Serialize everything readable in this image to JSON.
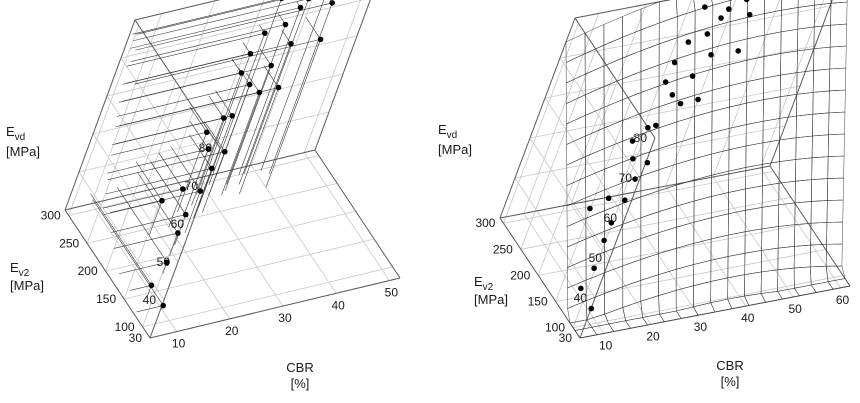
{
  "chart_data": [
    {
      "type": "scatter3d",
      "axes": {
        "x": {
          "label": "CBR",
          "unit": "[%]",
          "ticks": [
            "10",
            "20",
            "30",
            "40",
            "50"
          ],
          "range": [
            5,
            52
          ]
        },
        "y": {
          "label": "E",
          "label_sub": "v2",
          "unit": "[MPa]",
          "ticks": [
            "100",
            "150",
            "200",
            "250",
            "300"
          ],
          "range": [
            80,
            310
          ]
        },
        "z": {
          "label": "E",
          "label_sub": "vd",
          "unit": "[MPa]",
          "ticks": [
            "30",
            "40",
            "50",
            "60",
            "70",
            "80"
          ],
          "range": [
            30,
            80
          ]
        }
      },
      "grid": true,
      "points": [
        {
          "x": 10,
          "y": 120,
          "z": 31
        },
        {
          "x": 9,
          "y": 145,
          "z": 33
        },
        {
          "x": 14,
          "y": 175,
          "z": 33
        },
        {
          "x": 17,
          "y": 200,
          "z": 36
        },
        {
          "x": 19,
          "y": 215,
          "z": 38
        },
        {
          "x": 16,
          "y": 240,
          "z": 39
        },
        {
          "x": 20,
          "y": 245,
          "z": 40
        },
        {
          "x": 22,
          "y": 230,
          "z": 41
        },
        {
          "x": 25,
          "y": 250,
          "z": 43
        },
        {
          "x": 27,
          "y": 255,
          "z": 46
        },
        {
          "x": 24,
          "y": 260,
          "z": 47
        },
        {
          "x": 23,
          "y": 265,
          "z": 51
        },
        {
          "x": 26,
          "y": 270,
          "z": 53
        },
        {
          "x": 27,
          "y": 265,
          "z": 54
        },
        {
          "x": 32,
          "y": 275,
          "z": 57
        },
        {
          "x": 35,
          "y": 270,
          "z": 58
        },
        {
          "x": 30,
          "y": 280,
          "z": 59
        },
        {
          "x": 28,
          "y": 285,
          "z": 62
        },
        {
          "x": 33,
          "y": 280,
          "z": 63
        },
        {
          "x": 29,
          "y": 290,
          "z": 66
        },
        {
          "x": 36,
          "y": 285,
          "z": 67
        },
        {
          "x": 40,
          "y": 270,
          "z": 69
        },
        {
          "x": 31,
          "y": 295,
          "z": 70
        },
        {
          "x": 34,
          "y": 290,
          "z": 72
        },
        {
          "x": 37,
          "y": 300,
          "z": 74
        },
        {
          "x": 42,
          "y": 290,
          "z": 75
        },
        {
          "x": 38,
          "y": 300,
          "z": 76
        },
        {
          "x": 33,
          "y": 305,
          "z": 77
        },
        {
          "x": 41,
          "y": 298,
          "z": 78
        }
      ]
    },
    {
      "type": "surface3d",
      "axes": {
        "x": {
          "label": "CBR",
          "unit": "[%]",
          "ticks": [
            "10",
            "20",
            "30",
            "40",
            "50",
            "60"
          ],
          "range": [
            5,
            62
          ]
        },
        "y": {
          "label": "E",
          "label_sub": "v2",
          "unit": "[MPa]",
          "ticks": [
            "100",
            "150",
            "200",
            "250",
            "300"
          ],
          "range": [
            80,
            310
          ]
        },
        "z": {
          "label": "E",
          "label_sub": "vd",
          "unit": "[MPa]",
          "ticks": [
            "30",
            "40",
            "50",
            "60",
            "70",
            "80"
          ],
          "range": [
            30,
            80
          ]
        }
      },
      "grid": true,
      "colormap": [
        "#2b1cc9",
        "#1e6ad8",
        "#1fa37a",
        "#7ccf1b",
        "#e7e819",
        "#f3a21b",
        "#e8401f"
      ],
      "surface": {
        "x_range": [
          5,
          62
        ],
        "y_range": [
          80,
          310
        ],
        "resolution": 16
      },
      "points": [
        {
          "x": 10,
          "y": 120,
          "z": 31
        },
        {
          "x": 9,
          "y": 145,
          "z": 33
        },
        {
          "x": 14,
          "y": 175,
          "z": 33
        },
        {
          "x": 17,
          "y": 200,
          "z": 36
        },
        {
          "x": 19,
          "y": 215,
          "z": 38
        },
        {
          "x": 16,
          "y": 240,
          "z": 39
        },
        {
          "x": 20,
          "y": 245,
          "z": 40
        },
        {
          "x": 22,
          "y": 230,
          "z": 41
        },
        {
          "x": 25,
          "y": 250,
          "z": 43
        },
        {
          "x": 27,
          "y": 255,
          "z": 46
        },
        {
          "x": 24,
          "y": 260,
          "z": 47
        },
        {
          "x": 23,
          "y": 265,
          "z": 51
        },
        {
          "x": 26,
          "y": 270,
          "z": 53
        },
        {
          "x": 27,
          "y": 265,
          "z": 54
        },
        {
          "x": 32,
          "y": 275,
          "z": 57
        },
        {
          "x": 35,
          "y": 270,
          "z": 58
        },
        {
          "x": 30,
          "y": 280,
          "z": 59
        },
        {
          "x": 28,
          "y": 285,
          "z": 62
        },
        {
          "x": 33,
          "y": 280,
          "z": 63
        },
        {
          "x": 29,
          "y": 290,
          "z": 66
        },
        {
          "x": 36,
          "y": 285,
          "z": 67
        },
        {
          "x": 40,
          "y": 270,
          "z": 69
        },
        {
          "x": 31,
          "y": 295,
          "z": 70
        },
        {
          "x": 34,
          "y": 290,
          "z": 72
        },
        {
          "x": 37,
          "y": 300,
          "z": 74
        },
        {
          "x": 42,
          "y": 290,
          "z": 75
        },
        {
          "x": 38,
          "y": 300,
          "z": 76
        },
        {
          "x": 33,
          "y": 305,
          "z": 77
        },
        {
          "x": 41,
          "y": 298,
          "z": 78
        }
      ]
    }
  ]
}
